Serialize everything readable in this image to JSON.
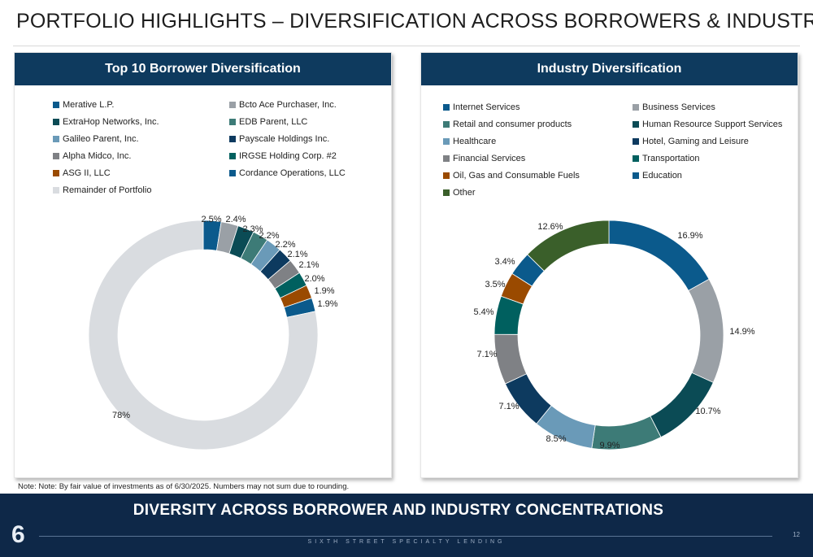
{
  "page_title": "PORTFOLIO HIGHLIGHTS – DIVERSIFICATION ACROSS BORROWERS & INDUSTRIES",
  "note": "Note: Note: By fair value of investments as of 6/30/2025. Numbers may not sum due to rounding.",
  "footer": {
    "message": "DIVERSITY ACROSS BORROWER AND INDUSTRY CONCENTRATIONS",
    "logo": "6",
    "brand": "SIXTH STREET SPECIALTY LENDING",
    "page_number": "12"
  },
  "chart_data": [
    {
      "type": "pie",
      "title": "Top 10 Borrower Diversification",
      "donut": true,
      "legend_position": "top",
      "start_angle_deg": 0,
      "slices": [
        {
          "name": "Merative L.P.",
          "value": 2.5,
          "label": "2.5%",
          "color": "#0b5a8c"
        },
        {
          "name": "Bcto Ace Purchaser, Inc.",
          "value": 2.4,
          "label": "2.4%",
          "color": "#9aa0a6"
        },
        {
          "name": "ExtraHop Networks, Inc.",
          "value": 2.3,
          "label": "2.3%",
          "color": "#0b4b55"
        },
        {
          "name": "EDB Parent, LLC",
          "value": 2.2,
          "label": "2.2%",
          "color": "#3d7b77"
        },
        {
          "name": "Galileo Parent, Inc.",
          "value": 2.2,
          "label": "2.2%",
          "color": "#6a9ab8"
        },
        {
          "name": "Payscale Holdings Inc.",
          "value": 2.1,
          "label": "2.1%",
          "color": "#0d3a5f"
        },
        {
          "name": "Alpha Midco, Inc.",
          "value": 2.1,
          "label": "2.1%",
          "color": "#7f8185"
        },
        {
          "name": "IRGSE Holding Corp. #2",
          "value": 2.0,
          "label": "2.0%",
          "color": "#00605f"
        },
        {
          "name": "ASG II, LLC",
          "value": 1.9,
          "label": "1.9%",
          "color": "#9a4a00"
        },
        {
          "name": "Cordance Operations, LLC",
          "value": 1.9,
          "label": "1.9%",
          "color": "#0b5a8c"
        },
        {
          "name": "Remainder of Portfolio",
          "value": 78,
          "label": "78%",
          "color": "#d9dce0"
        }
      ]
    },
    {
      "type": "pie",
      "title": "Industry Diversification",
      "donut": true,
      "legend_position": "top",
      "start_angle_deg": 0,
      "slices": [
        {
          "name": "Internet Services",
          "value": 16.9,
          "label": "16.9%",
          "color": "#0b5a8c"
        },
        {
          "name": "Business Services",
          "value": 14.9,
          "label": "14.9%",
          "color": "#9aa0a6"
        },
        {
          "name": "Human Resource Support Services",
          "value": 10.7,
          "label": "10.7%",
          "color": "#0b4b55"
        },
        {
          "name": "Retail and consumer products",
          "value": 9.9,
          "label": "9.9%",
          "color": "#3d7b77"
        },
        {
          "name": "Healthcare",
          "value": 8.5,
          "label": "8.5%",
          "color": "#6a9ab8"
        },
        {
          "name": "Hotel, Gaming and Leisure",
          "value": 7.1,
          "label": "7.1%",
          "color": "#0d3a5f"
        },
        {
          "name": "Financial Services",
          "value": 7.1,
          "label": "7.1%",
          "color": "#7f8185"
        },
        {
          "name": "Transportation",
          "value": 5.4,
          "label": "5.4%",
          "color": "#00605f"
        },
        {
          "name": "Oil, Gas and Consumable Fuels",
          "value": 3.5,
          "label": "3.5%",
          "color": "#9a4a00"
        },
        {
          "name": "Education",
          "value": 3.4,
          "label": "3.4%",
          "color": "#0b5a8c"
        },
        {
          "name": "Other",
          "value": 12.6,
          "label": "12.6%",
          "color": "#3a5f2a"
        }
      ],
      "legend_order": [
        "Internet Services",
        "Business Services",
        "Retail and consumer products",
        "Human Resource Support Services",
        "Healthcare",
        "Hotel, Gaming and Leisure",
        "Financial Services",
        "Transportation",
        "Oil, Gas and Consumable Fuels",
        "Education",
        "Other"
      ]
    }
  ]
}
